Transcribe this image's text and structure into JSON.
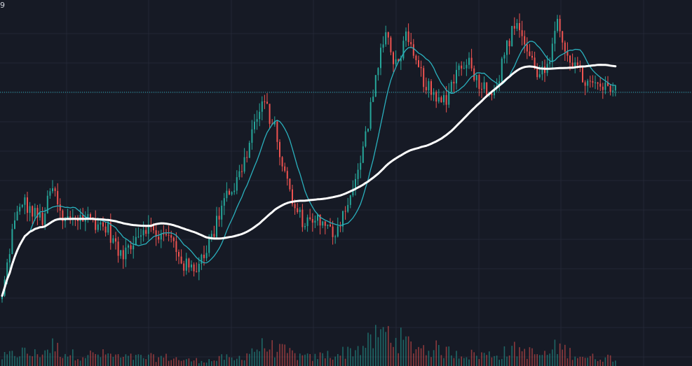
{
  "corner_text": "9",
  "colors": {
    "background": "#161a25",
    "grid": "#232735",
    "bull": "#26a69a",
    "bear": "#ef5350",
    "fast_ma": "#2ab0bd",
    "slow_ma": "#ffffff",
    "price_line": "#2ab0bd"
  },
  "chart_data": {
    "type": "candlestick",
    "title": "",
    "xlabel": "",
    "ylabel": "",
    "grid": true,
    "ylim": [
      0,
      100
    ],
    "current_price": 73.5,
    "anchors": [
      [
        0,
        9.5,
        15
      ],
      [
        4,
        30,
        20
      ],
      [
        8,
        40,
        25
      ],
      [
        12,
        36,
        20
      ],
      [
        16,
        34,
        25
      ],
      [
        20,
        44,
        35
      ],
      [
        24,
        33,
        25
      ],
      [
        28,
        35,
        20
      ],
      [
        35,
        34,
        20
      ],
      [
        42,
        31,
        20
      ],
      [
        47,
        22,
        15
      ],
      [
        52,
        28,
        15
      ],
      [
        57,
        32,
        15
      ],
      [
        62,
        29,
        15
      ],
      [
        67,
        28,
        15
      ],
      [
        72,
        20,
        10
      ],
      [
        76,
        18,
        10
      ],
      [
        80,
        24,
        10
      ],
      [
        84,
        30,
        10
      ],
      [
        88,
        42,
        15
      ],
      [
        92,
        44,
        10
      ],
      [
        96,
        52,
        20
      ],
      [
        100,
        64,
        30
      ],
      [
        104,
        70,
        35
      ],
      [
        108,
        62,
        30
      ],
      [
        112,
        48,
        25
      ],
      [
        116,
        37,
        20
      ],
      [
        120,
        33,
        15
      ],
      [
        124,
        35,
        15
      ],
      [
        128,
        31,
        20
      ],
      [
        132,
        30,
        20
      ],
      [
        136,
        38,
        25
      ],
      [
        140,
        45,
        30
      ],
      [
        144,
        60,
        35
      ],
      [
        148,
        78,
        50
      ],
      [
        152,
        92,
        60
      ],
      [
        156,
        82,
        50
      ],
      [
        160,
        90,
        40
      ],
      [
        164,
        82,
        35
      ],
      [
        168,
        76,
        30
      ],
      [
        172,
        70,
        30
      ],
      [
        176,
        72,
        25
      ],
      [
        180,
        80,
        25
      ],
      [
        184,
        84,
        20
      ],
      [
        188,
        78,
        20
      ],
      [
        192,
        74,
        20
      ],
      [
        196,
        76,
        20
      ],
      [
        200,
        88,
        25
      ],
      [
        204,
        96,
        30
      ],
      [
        208,
        86,
        25
      ],
      [
        212,
        80,
        20
      ],
      [
        216,
        80,
        20
      ],
      [
        220,
        94,
        35
      ],
      [
        224,
        86,
        25
      ],
      [
        228,
        80,
        20
      ],
      [
        232,
        76,
        15
      ],
      [
        236,
        75,
        15
      ],
      [
        240,
        74,
        15
      ],
      [
        243,
        73.5,
        15
      ]
    ]
  }
}
